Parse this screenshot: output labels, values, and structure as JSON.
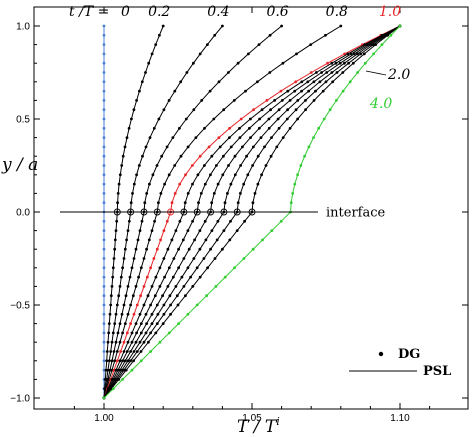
{
  "chart_data": {
    "type": "line",
    "title": "",
    "xlabel": "T / T",
    "xlabel_sup": "i",
    "ylabel": "y / a",
    "xlim": [
      0.98,
      1.12
    ],
    "ylim": [
      -1.05,
      1.05
    ],
    "xticks": [
      1.0,
      1.05,
      1.1
    ],
    "xtick_labels": [
      "1.00",
      "1.05",
      "1.10"
    ],
    "yticks": [
      -1.0,
      -0.5,
      0.0,
      0.5,
      1.0
    ],
    "ytick_labels": [
      "−1.0",
      "−0.5",
      "0.0",
      "0.5",
      "1.0"
    ],
    "grid": false,
    "legend_position": "bottom-right",
    "legend": [
      {
        "label": "DG",
        "marker": "dot"
      },
      {
        "label": "PSL",
        "marker": "line"
      }
    ],
    "annotations": [
      {
        "text": "interface",
        "x": 1.063,
        "y": 0.0
      }
    ],
    "header_label": "t /T = ",
    "series": [
      {
        "name": "0",
        "color": "#4a7fd4",
        "x_top": 1.0,
        "x_mid": 1.0,
        "x_bot": 1.0
      },
      {
        "name": "0.2",
        "color": "#000000",
        "x_top": 1.02,
        "x_mid": 1.0045,
        "x_bot": 1.0
      },
      {
        "name": "0.4",
        "color": "#000000",
        "x_top": 1.04,
        "x_mid": 1.009,
        "x_bot": 1.0
      },
      {
        "name": "0.6",
        "color": "#000000",
        "x_top": 1.06,
        "x_mid": 1.0135,
        "x_bot": 1.0
      },
      {
        "name": "0.8",
        "color": "#000000",
        "x_top": 1.08,
        "x_mid": 1.018,
        "x_bot": 1.0
      },
      {
        "name": "1.0",
        "color": "#e8262a",
        "x_top": 1.1,
        "x_mid": 1.0225,
        "x_bot": 1.0
      },
      {
        "name": "",
        "color": "#000000",
        "x_top": 1.1,
        "x_mid": 1.027,
        "x_bot": 1.0
      },
      {
        "name": "",
        "color": "#000000",
        "x_top": 1.1,
        "x_mid": 1.0315,
        "x_bot": 1.0
      },
      {
        "name": "",
        "color": "#000000",
        "x_top": 1.1,
        "x_mid": 1.036,
        "x_bot": 1.0
      },
      {
        "name": "2.0",
        "color": "#000000",
        "x_top": 1.1,
        "x_mid": 1.0405,
        "x_bot": 1.0
      },
      {
        "name": "",
        "color": "#000000",
        "x_top": 1.1,
        "x_mid": 1.045,
        "x_bot": 1.0
      },
      {
        "name": "",
        "color": "#000000",
        "x_top": 1.1,
        "x_mid": 1.05,
        "x_bot": 1.0
      },
      {
        "name": "4.0",
        "color": "#33cc33",
        "x_top": 1.1,
        "x_mid": 1.063,
        "x_bot": 1.0
      }
    ]
  }
}
